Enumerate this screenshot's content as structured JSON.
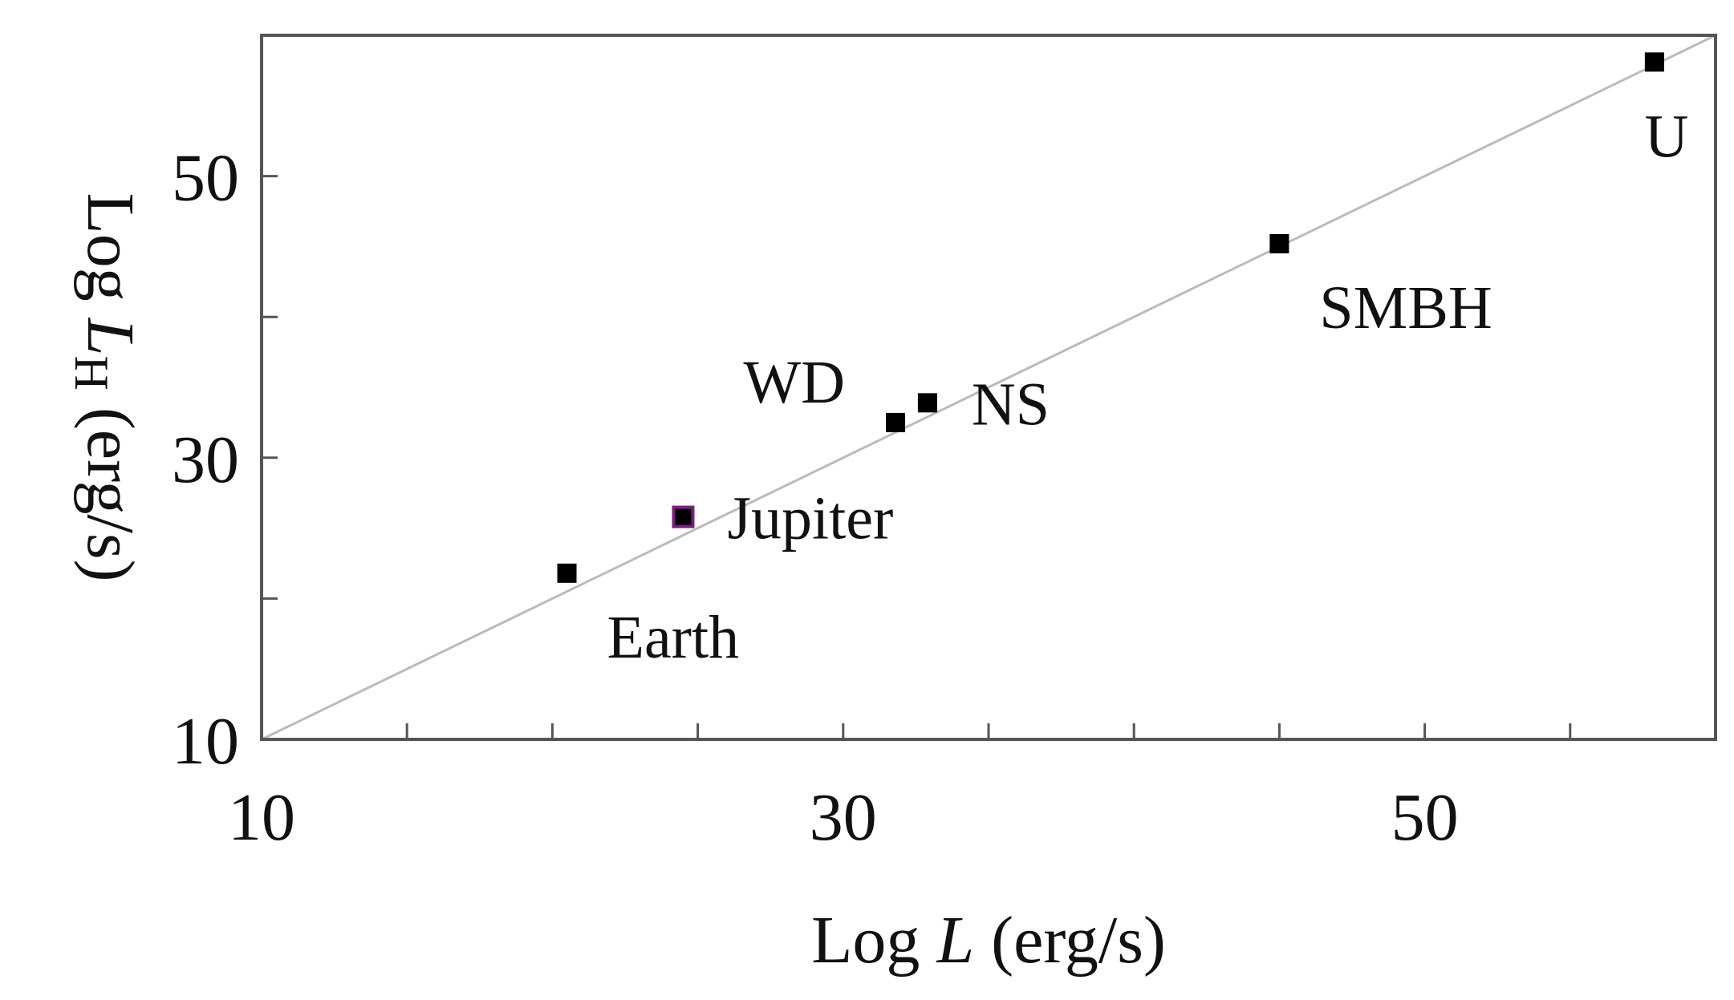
{
  "chart_data": {
    "type": "scatter",
    "xlabel": {
      "prefix": "Log ",
      "var": "L",
      "sub": "",
      "suffix": " (erg/s)"
    },
    "ylabel": {
      "prefix": "Log ",
      "var": "L",
      "sub": "H",
      "suffix": " (erg/s)"
    },
    "xlim": [
      10,
      60
    ],
    "ylim": [
      10,
      60
    ],
    "x_ticks_labeled": [
      "10",
      "30",
      "50"
    ],
    "y_ticks_labeled": [
      "10",
      "30",
      "50"
    ],
    "x_minor_ticks": [
      15,
      20,
      25,
      35,
      40,
      45,
      55
    ],
    "y_minor_ticks": [
      20,
      40
    ],
    "grid": false,
    "reference_line": {
      "from": [
        10,
        10
      ],
      "to": [
        60,
        60
      ],
      "color": "#bbbbbb"
    },
    "points": [
      {
        "label": "Earth",
        "x": 20.5,
        "y": 21.8,
        "label_pos": "below-right",
        "color": "#000000"
      },
      {
        "label": "Jupiter",
        "x": 24.5,
        "y": 25.8,
        "label_pos": "right",
        "color": "#000000",
        "edge": "#7a1f7a"
      },
      {
        "label": "WD",
        "x": 31.8,
        "y": 32.5,
        "label_pos": "upper-left",
        "color": "#000000"
      },
      {
        "label": "NS",
        "x": 32.9,
        "y": 33.9,
        "label_pos": "right",
        "color": "#000000"
      },
      {
        "label": "SMBH",
        "x": 45.0,
        "y": 45.2,
        "label_pos": "below-right",
        "color": "#000000"
      },
      {
        "label": "U",
        "x": 57.9,
        "y": 58.1,
        "label_pos": "below",
        "color": "#000000"
      }
    ],
    "colors": {
      "frame": "#555555",
      "marker": "#000000",
      "text": "#111111"
    }
  }
}
